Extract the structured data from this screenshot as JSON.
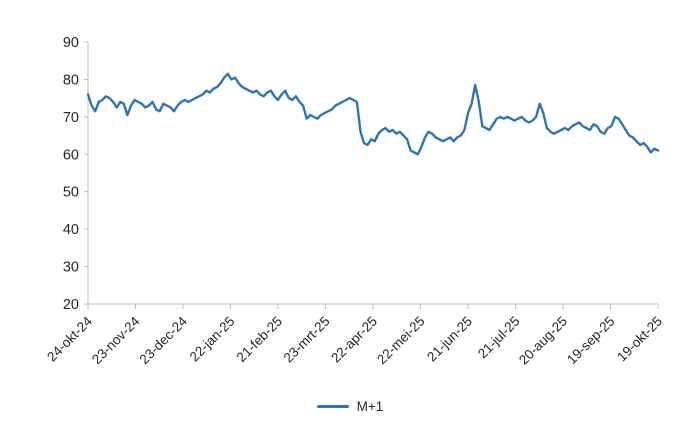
{
  "chart_data": {
    "type": "line",
    "title": "",
    "xlabel": "",
    "ylabel": "",
    "ylim": [
      20,
      90
    ],
    "ytick_step": 10,
    "grid": false,
    "legend_position": "bottom",
    "axis_color": "#BFBFBF",
    "label_color": "#262626",
    "x_tick_labels": [
      "24-okt-24",
      "23-nov-24",
      "23-dec-24",
      "22-jan-25",
      "21-feb-25",
      "23-mrt-25",
      "22-apr-25",
      "22-mei-25",
      "21-jun-25",
      "21-jul-25",
      "20-aug-25",
      "19-sep-25",
      "19-okt-25"
    ],
    "series": [
      {
        "name": "M+1",
        "color": "#2E75B6",
        "values": [
          76,
          73,
          71.5,
          74,
          74.5,
          75.5,
          75,
          74,
          72.5,
          74,
          73.5,
          70.5,
          73,
          74.5,
          74,
          73.5,
          72.5,
          73,
          74,
          72,
          71.5,
          73.5,
          73,
          72.5,
          71.5,
          73,
          74,
          74.5,
          74,
          74.5,
          75,
          75.5,
          76,
          77,
          76.5,
          77.5,
          78,
          79,
          80.5,
          81.5,
          80,
          80.5,
          79,
          78,
          77.5,
          77,
          76.5,
          77,
          76,
          75.5,
          76.5,
          77,
          75.5,
          74.5,
          76,
          77,
          75,
          74.5,
          75.5,
          74,
          73,
          69.5,
          70.5,
          70,
          69.5,
          70.5,
          71,
          71.5,
          72,
          73,
          73.5,
          74,
          74.5,
          75,
          74.5,
          74,
          66,
          63,
          62.5,
          64,
          63.5,
          65.5,
          66.5,
          67,
          66,
          66.5,
          65.5,
          66,
          65,
          64,
          61,
          60.5,
          60,
          62,
          64.5,
          66,
          65.5,
          64.5,
          64,
          63.5,
          64,
          64.5,
          63.5,
          64.5,
          65,
          66.5,
          71,
          73.5,
          78.5,
          74,
          67.5,
          67,
          66.5,
          68,
          69.5,
          70,
          69.5,
          70,
          69.5,
          69,
          69.5,
          70,
          69,
          68.5,
          69,
          70,
          73.5,
          71,
          67,
          66,
          65.5,
          66,
          66.5,
          67,
          66.5,
          67.5,
          68,
          68.5,
          67.5,
          67,
          66.5,
          68,
          67.5,
          66,
          65.5,
          67,
          67.5,
          70,
          69.5,
          68,
          66.5,
          65,
          64.5,
          63.5,
          62.5,
          63,
          62,
          60.5,
          61.5,
          61
        ]
      }
    ]
  }
}
